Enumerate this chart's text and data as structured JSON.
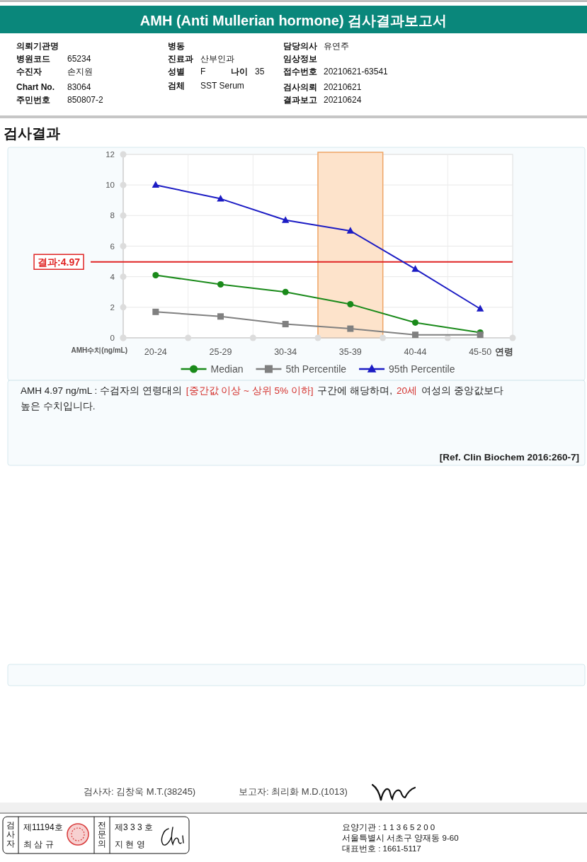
{
  "chart_data": {
    "type": "line",
    "title": "AMH (Anti Mullerian hormone) 검사결과보고서",
    "subtitle": "검사결과",
    "categories": [
      "20-24",
      "25-29",
      "30-34",
      "35-39",
      "40-44",
      "45-50"
    ],
    "xlabel": "연령",
    "ylabel": "AMH수치(ng/mL)",
    "ylim": [
      0,
      12
    ],
    "yticks": [
      0,
      2,
      4,
      6,
      8,
      10,
      12
    ],
    "grid": true,
    "legend": "bottom",
    "line_style": "solid",
    "series": [
      {
        "name": "Median",
        "color": "#1a8a1a",
        "marker": "circle",
        "values": [
          4.1,
          3.5,
          3.0,
          2.2,
          1.0,
          0.35
        ]
      },
      {
        "name": "5th Percentile",
        "color": "#808080",
        "marker": "square",
        "values": [
          1.7,
          1.4,
          0.9,
          0.6,
          0.2,
          0.2
        ]
      },
      {
        "name": "95th Percentile",
        "color": "#1c1cc4",
        "marker": "triangle",
        "values": [
          10.0,
          9.1,
          7.7,
          7.0,
          4.5,
          1.9
        ]
      }
    ],
    "ref_lines": [
      {
        "axis": "y",
        "value": 4.97,
        "label": "결과:4.97",
        "color": "#e02424"
      }
    ],
    "bands": [
      {
        "axis": "x",
        "from": "35-39",
        "to": "35-39",
        "color": "#fde3cb"
      }
    ],
    "annotations": [
      "의뢰기관명",
      "병동",
      "담당의사",
      "유연주",
      "병원코드",
      "65234",
      "진료과",
      "산부인과",
      "임상정보",
      "수진자",
      "손지원",
      "성별",
      "F",
      "나이",
      "35",
      "접수번호",
      "20210621-63541",
      "Chart No.",
      "83064",
      "검체",
      "SST Serum",
      "검사의뢰",
      "20210621",
      "주민번호",
      "850807-2",
      "결과보고",
      "20210624",
      "AMH 4.97 ng/mL : 수검자의 연령대의",
      "[중간값 이상 ~ 상위 5% 이하]",
      "구간에 해당하며,",
      "20세",
      "여성의 중앙값보다",
      "높은 수치입니다.",
      "[Ref. Clin Biochem 2016:260-7]",
      "검사자: 김창욱 M.T.(38245)",
      "보고자: 최리화 M.D.(1013)",
      "검사자",
      "제11194호",
      "최 삼 규",
      "전문의",
      "제3 3 3 호",
      "지 현 영",
      "요양기관 : 1 1 3 6 5 2 0 0",
      "서울특별시 서초구 양재동 9-60",
      "대표번호 : 1661-5117"
    ]
  }
}
